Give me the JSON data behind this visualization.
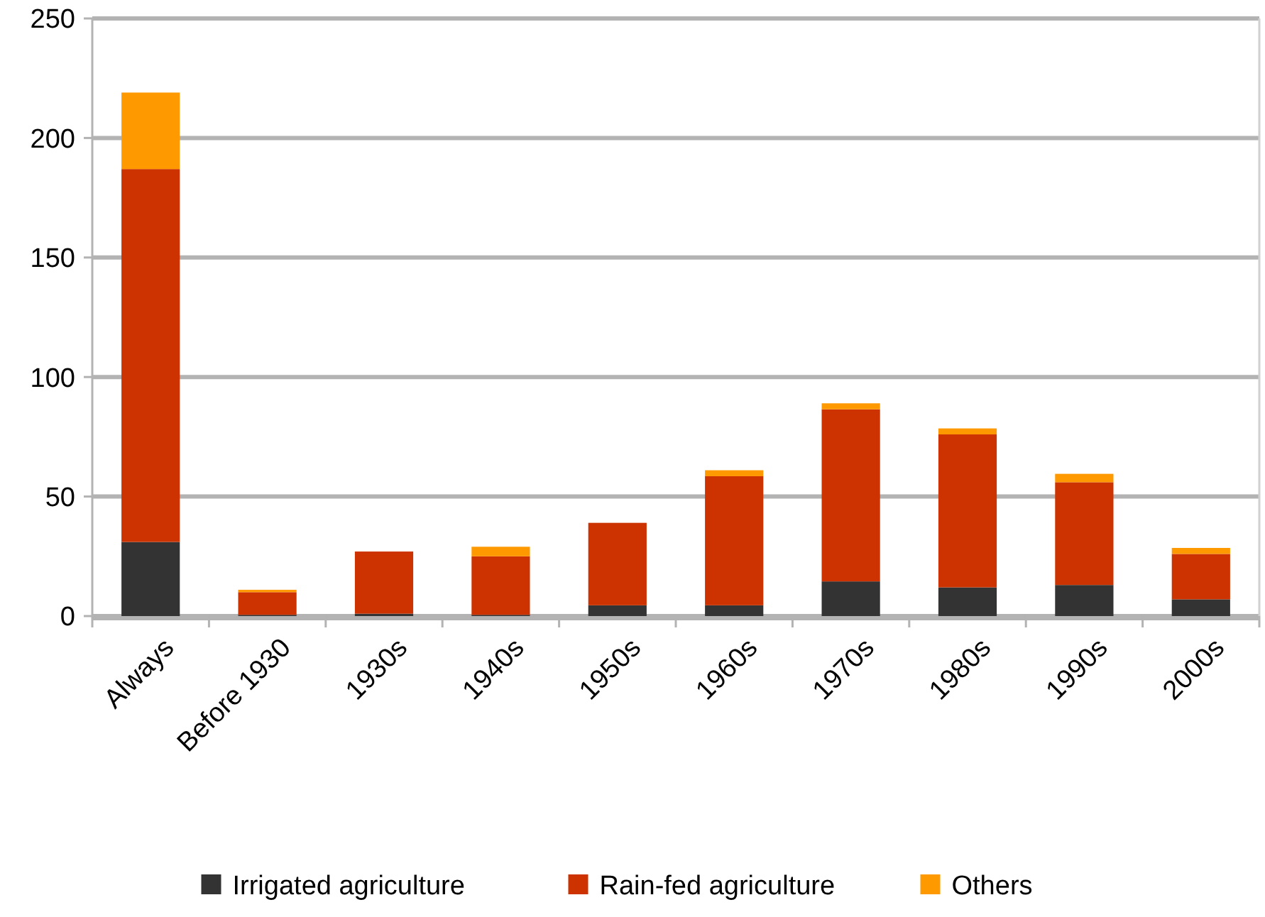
{
  "chart_data": {
    "type": "bar",
    "stacked": true,
    "categories": [
      "Always",
      "Before 1930",
      "1930s",
      "1940s",
      "1950s",
      "1960s",
      "1970s",
      "1980s",
      "1990s",
      "2000s"
    ],
    "series": [
      {
        "name": "Irrigated agriculture",
        "color": "#333333",
        "values": [
          31,
          0.5,
          1,
          0.5,
          4.5,
          4.5,
          14.5,
          12,
          13,
          7
        ]
      },
      {
        "name": "Rain-fed agriculture",
        "color": "#cc3300",
        "values": [
          156,
          9.5,
          26,
          24.5,
          34.5,
          54,
          72,
          64,
          43,
          19
        ]
      },
      {
        "name": "Others",
        "color": "#ff9900",
        "values": [
          32,
          1,
          0,
          4,
          0,
          2.5,
          2.5,
          2.5,
          3.5,
          2.5
        ]
      }
    ],
    "ylim": [
      0,
      250
    ],
    "yticks": [
      0,
      50,
      100,
      150,
      200,
      250
    ],
    "grid": "y",
    "legend": "bottom"
  }
}
